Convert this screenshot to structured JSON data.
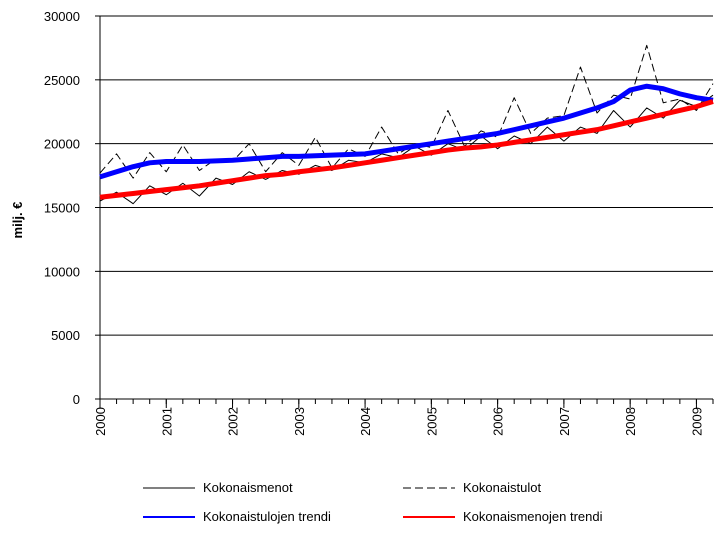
{
  "chart_data": {
    "type": "line",
    "y_label": "milj. €",
    "x": [
      2000,
      2000.25,
      2000.5,
      2000.75,
      2001,
      2001.25,
      2001.5,
      2001.75,
      2002,
      2002.25,
      2002.5,
      2002.75,
      2003,
      2003.25,
      2003.5,
      2003.75,
      2004,
      2004.25,
      2004.5,
      2004.75,
      2005,
      2005.25,
      2005.5,
      2005.75,
      2006,
      2006.25,
      2006.5,
      2006.75,
      2007,
      2007.25,
      2007.5,
      2007.75,
      2008,
      2008.25,
      2008.5,
      2008.75,
      2009,
      2009.25
    ],
    "xlim": [
      2000,
      2009.25
    ],
    "xticks": [
      2000,
      2001,
      2002,
      2003,
      2004,
      2005,
      2006,
      2007,
      2008,
      2009
    ],
    "ylim": [
      0,
      30000
    ],
    "yticks": [
      0,
      5000,
      10000,
      15000,
      20000,
      25000,
      30000
    ],
    "grid": true,
    "series": [
      {
        "name": "Kokonaismenot",
        "color": "#000000",
        "width": 1,
        "dashed": false,
        "values": [
          15500,
          16200,
          15300,
          16700,
          16000,
          16900,
          15900,
          17300,
          16800,
          17800,
          17200,
          17900,
          17600,
          18300,
          17900,
          18700,
          18500,
          19200,
          18900,
          19800,
          19100,
          20000,
          19500,
          20600,
          19600,
          20600,
          20000,
          21300,
          20200,
          21300,
          20800,
          22600,
          21300,
          22800,
          22000,
          23400,
          22900,
          23800
        ]
      },
      {
        "name": "Kokonaistulot",
        "color": "#000000",
        "width": 1,
        "dashed": true,
        "values": [
          17700,
          19200,
          17300,
          19300,
          17800,
          19900,
          17900,
          18800,
          18600,
          20000,
          17800,
          19300,
          18300,
          20500,
          18100,
          19600,
          19000,
          21300,
          19200,
          20000,
          19700,
          22600,
          19800,
          21000,
          20500,
          23600,
          20800,
          22000,
          22200,
          26000,
          22400,
          23800,
          23500,
          27700,
          23200,
          23500,
          22600,
          24700
        ]
      },
      {
        "name": "Kokonaistulojen trendi",
        "color": "#0000ff",
        "width": 5,
        "dashed": false,
        "values": [
          17400,
          17800,
          18200,
          18500,
          18600,
          18600,
          18600,
          18650,
          18700,
          18800,
          18900,
          19000,
          19000,
          19050,
          19100,
          19150,
          19200,
          19400,
          19600,
          19800,
          20000,
          20200,
          20400,
          20600,
          20800,
          21100,
          21400,
          21700,
          22000,
          22400,
          22800,
          23300,
          24200,
          24500,
          24300,
          23900,
          23600,
          23400
        ]
      },
      {
        "name": "Kokonaismenojen trendi",
        "color": "#ff0000",
        "width": 5,
        "dashed": false,
        "values": [
          15800,
          15950,
          16100,
          16250,
          16400,
          16550,
          16700,
          16900,
          17100,
          17300,
          17500,
          17600,
          17800,
          17950,
          18100,
          18300,
          18500,
          18700,
          18900,
          19100,
          19300,
          19500,
          19650,
          19750,
          19900,
          20100,
          20300,
          20500,
          20700,
          20900,
          21100,
          21400,
          21700,
          22000,
          22300,
          22600,
          22900,
          23300
        ]
      }
    ]
  }
}
